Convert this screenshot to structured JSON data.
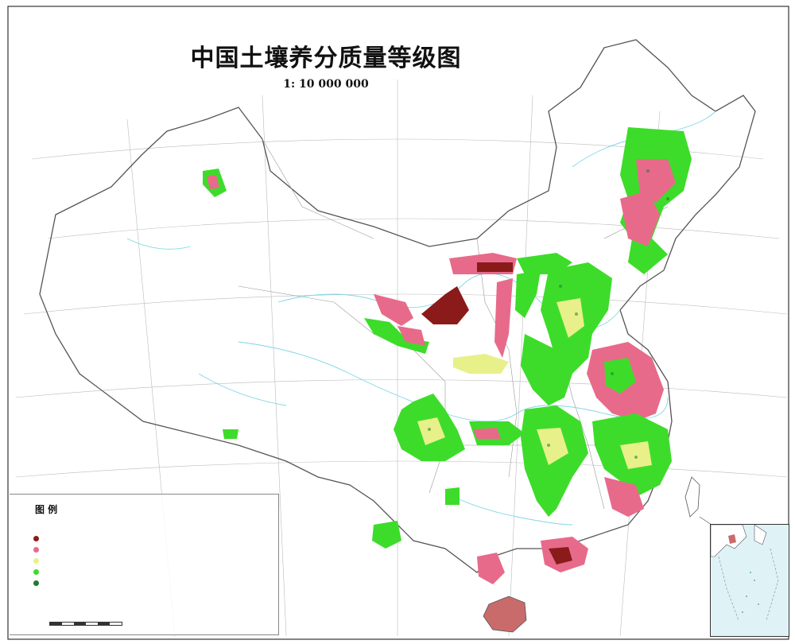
{
  "map": {
    "title": "中国土壤养分质量等级图",
    "scale": "1: 10  000  000"
  },
  "legend": {
    "title": "图  例",
    "header": "",
    "items": [
      {
        "code": "",
        "name": "",
        "value": "",
        "pct": "",
        "color": "#8b1a1a"
      },
      {
        "code": "",
        "name": "",
        "value": "",
        "pct": "",
        "color": "#e86a8a"
      },
      {
        "code": "",
        "name": "",
        "value": "",
        "pct": "",
        "color": "#e8f08a"
      },
      {
        "code": "",
        "name": "",
        "value": "",
        "pct": "",
        "color": "#3ddc2a"
      },
      {
        "code": "",
        "name": "",
        "value": "",
        "pct": "",
        "color": "#1e7a2e"
      }
    ]
  },
  "bottom": {
    "scale_text": "",
    "credit": ""
  },
  "colors": {
    "frame": "#333333",
    "boundary": "#555555",
    "river": "#7fd6e8",
    "grade_low": "#8b1a1a",
    "grade_midlow": "#e86a8a",
    "grade_mid": "#e8f08a",
    "grade_midhigh": "#3ddc2a",
    "grade_high": "#1e7a2e"
  }
}
